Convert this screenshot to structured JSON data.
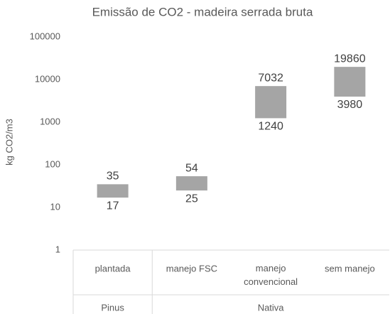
{
  "chart_data": {
    "type": "range-bar",
    "title": "Emissão de CO2 - madeira serrada bruta",
    "y_label": "kg CO2/m3",
    "categories": [
      "plantada",
      "manejo FSC",
      "manejo convencional",
      "sem manejo"
    ],
    "groups": [
      {
        "label": "Pinus",
        "span": 1
      },
      {
        "label": "Nativa",
        "span": 3
      }
    ],
    "low": [
      17,
      25,
      1240,
      3980
    ],
    "high": [
      35,
      54,
      7032,
      19860
    ],
    "color": "#a5a5a5",
    "log_scale": true,
    "grid": false,
    "ylim": [
      1,
      100000
    ],
    "yticks": [
      1,
      10,
      100,
      1000,
      10000,
      100000
    ]
  }
}
